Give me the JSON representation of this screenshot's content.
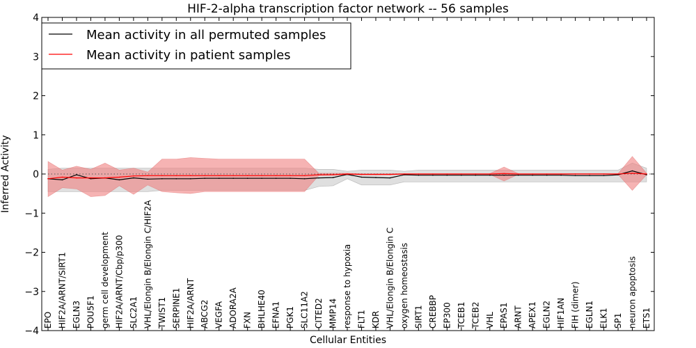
{
  "chart_data": {
    "type": "line",
    "title": "HIF-2-alpha transcription factor network -- 56 samples",
    "xlabel": "Cellular Entities",
    "ylabel": "Inferred Activity",
    "ylim": [
      -4,
      4
    ],
    "yticks": [
      "4",
      "3",
      "2",
      "1",
      "0",
      "−1",
      "−2",
      "−3",
      "−4"
    ],
    "ytick_values": [
      4,
      3,
      2,
      1,
      0,
      -1,
      -2,
      -3,
      -4
    ],
    "grid": false,
    "legend_position": "top-left",
    "categories": [
      "EPO",
      "HIF2A/ARNT/SIRT1",
      "EGLN3",
      "POU5F1",
      "germ cell development",
      "HIF2A/ARNT/Cbp/p300",
      "SLC2A1",
      "VHL/Elongin B/Elongin C/HIF2A",
      "TWIST1",
      "SERPINE1",
      "HIF2A/ARNT",
      "ABCG2",
      "VEGFA",
      "ADORA2A",
      "FXN",
      "BHLHE40",
      "EFNA1",
      "PGK1",
      "SLC11A2",
      "CITED2",
      "MMP14",
      "response to hypoxia",
      "FLT1",
      "KDR",
      "VHL/Elongin B/Elongin C",
      "oxygen homeostasis",
      "SIRT1",
      "CREBBP",
      "EP300",
      "TCEB1",
      "TCEB2",
      "VHL",
      "EPAS1",
      "ARNT",
      "APEX1",
      "EGLN2",
      "HIF1AN",
      "FIH (dimer)",
      "EGLN1",
      "ELK1",
      "SP1",
      "neuron apoptosis",
      "ETS1"
    ],
    "series": [
      {
        "name": "Mean activity in all permuted samples",
        "color": "#000000",
        "values": [
          -0.12,
          -0.15,
          -0.02,
          -0.12,
          -0.1,
          -0.15,
          -0.1,
          -0.13,
          -0.12,
          -0.12,
          -0.12,
          -0.11,
          -0.11,
          -0.11,
          -0.11,
          -0.11,
          -0.11,
          -0.11,
          -0.12,
          -0.1,
          -0.09,
          -0.01,
          -0.08,
          -0.09,
          -0.1,
          -0.02,
          -0.03,
          -0.03,
          -0.03,
          -0.03,
          -0.03,
          -0.03,
          -0.03,
          -0.03,
          -0.03,
          -0.03,
          -0.03,
          -0.04,
          -0.04,
          -0.04,
          -0.02,
          0.08,
          -0.02
        ],
        "band_lower": [
          -0.45,
          -0.45,
          -0.45,
          -0.45,
          -0.45,
          -0.45,
          -0.45,
          -0.45,
          -0.42,
          -0.42,
          -0.42,
          -0.42,
          -0.42,
          -0.42,
          -0.42,
          -0.42,
          -0.42,
          -0.42,
          -0.42,
          -0.32,
          -0.3,
          -0.12,
          -0.28,
          -0.28,
          -0.28,
          -0.2,
          -0.2,
          -0.2,
          -0.2,
          -0.2,
          -0.2,
          -0.2,
          -0.2,
          -0.2,
          -0.2,
          -0.2,
          -0.2,
          -0.2,
          -0.2,
          -0.2,
          -0.2,
          -0.2,
          -0.2
        ],
        "band_upper": [
          0.12,
          0.15,
          0.15,
          0.15,
          0.15,
          0.15,
          0.15,
          0.15,
          0.15,
          0.15,
          0.15,
          0.15,
          0.15,
          0.15,
          0.15,
          0.15,
          0.15,
          0.15,
          0.15,
          0.12,
          0.12,
          0.07,
          0.1,
          0.1,
          0.1,
          0.07,
          0.1,
          0.1,
          0.1,
          0.1,
          0.1,
          0.1,
          0.1,
          0.1,
          0.1,
          0.1,
          0.1,
          0.1,
          0.1,
          0.1,
          0.1,
          0.28,
          0.15
        ]
      },
      {
        "name": "Mean activity in patient samples",
        "color": "#ff0000",
        "values": [
          -0.12,
          -0.08,
          -0.1,
          -0.1,
          -0.1,
          -0.08,
          -0.05,
          -0.04,
          -0.04,
          -0.04,
          -0.04,
          -0.04,
          -0.04,
          -0.04,
          -0.04,
          -0.04,
          -0.04,
          -0.04,
          -0.04,
          -0.02,
          -0.02,
          0.0,
          -0.01,
          -0.01,
          -0.01,
          0.0,
          0.0,
          0.0,
          0.0,
          0.0,
          0.0,
          0.0,
          0.01,
          0.0,
          0.0,
          0.0,
          0.0,
          0.0,
          0.0,
          0.0,
          0.0,
          0.02,
          0.0
        ],
        "band_lower": [
          -0.58,
          -0.35,
          -0.38,
          -0.58,
          -0.55,
          -0.3,
          -0.52,
          -0.28,
          -0.45,
          -0.48,
          -0.5,
          -0.45,
          -0.45,
          -0.45,
          -0.45,
          -0.45,
          -0.45,
          -0.45,
          -0.45,
          -0.04,
          -0.03,
          -0.02,
          -0.02,
          -0.02,
          -0.02,
          -0.01,
          -0.01,
          -0.01,
          -0.01,
          -0.01,
          -0.01,
          -0.01,
          -0.18,
          -0.01,
          -0.01,
          -0.01,
          -0.01,
          -0.01,
          -0.01,
          -0.01,
          -0.01,
          -0.42,
          -0.02
        ],
        "band_upper": [
          0.32,
          0.1,
          0.2,
          0.12,
          0.28,
          0.1,
          0.15,
          0.05,
          0.38,
          0.38,
          0.42,
          0.4,
          0.38,
          0.38,
          0.38,
          0.38,
          0.38,
          0.38,
          0.38,
          0.02,
          0.02,
          0.02,
          0.01,
          0.01,
          0.01,
          0.01,
          0.01,
          0.01,
          0.01,
          0.01,
          0.01,
          0.01,
          0.18,
          0.01,
          0.01,
          0.01,
          0.01,
          0.01,
          0.01,
          0.01,
          0.01,
          0.45,
          0.02
        ]
      }
    ]
  }
}
